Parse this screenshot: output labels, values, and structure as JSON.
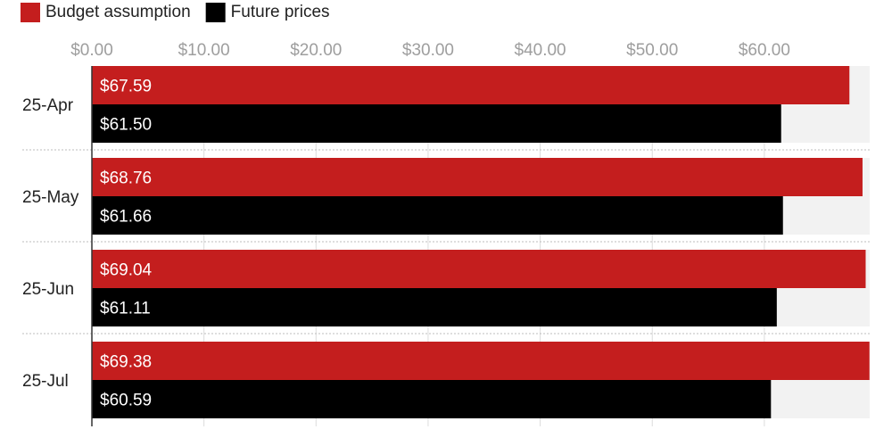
{
  "chart_data": {
    "type": "bar",
    "orientation": "horizontal",
    "categories": [
      "25-Apr",
      "25-May",
      "25-Jun",
      "25-Jul"
    ],
    "series": [
      {
        "name": "Budget assumption",
        "color": "#c41e1e",
        "values": [
          67.59,
          68.76,
          69.04,
          69.38
        ],
        "labels": [
          "$67.59",
          "$68.76",
          "$69.04",
          "$69.38"
        ]
      },
      {
        "name": "Future prices",
        "color": "#000000",
        "values": [
          61.5,
          61.66,
          61.11,
          60.59
        ],
        "labels": [
          "$61.50",
          "$61.66",
          "$61.11",
          "$60.59"
        ]
      }
    ],
    "xaxis": {
      "ticks": [
        0,
        10,
        20,
        30,
        40,
        50,
        60
      ],
      "tick_labels": [
        "$0.00",
        "$10.00",
        "$20.00",
        "$30.00",
        "$40.00",
        "$50.00",
        "$60.00"
      ],
      "range": [
        0,
        69.4
      ],
      "position": "top"
    },
    "grid": true,
    "legend": "top-left",
    "title": "",
    "xlabel": "",
    "ylabel": ""
  }
}
